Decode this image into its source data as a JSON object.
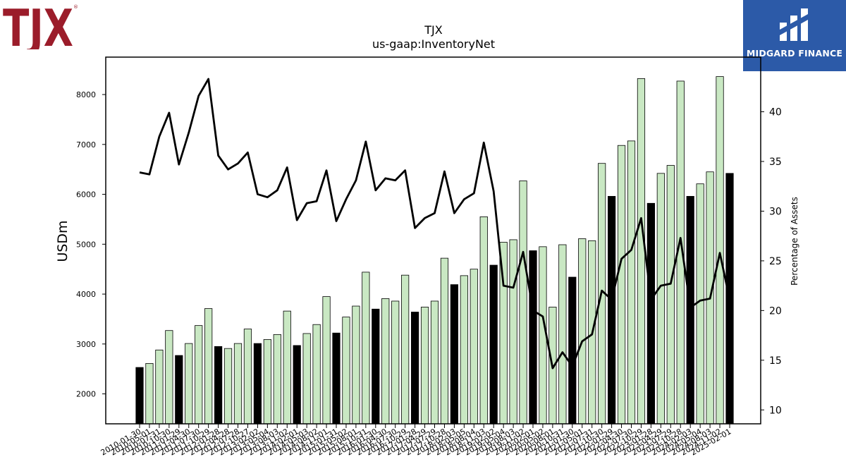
{
  "header": {
    "company_logo_text": "TJX",
    "brand_logo_text": "MIDGARD FINANCE",
    "colors": {
      "tjx_red": "#9b1c2a",
      "brand_blue": "#2c5aa8"
    }
  },
  "chart_data": {
    "type": "bar",
    "title": "TJX",
    "subtitle": "us-gaap:InventoryNet",
    "ylabel": "USDm",
    "y2label": "Percentage of Assets",
    "ylim": [
      1400,
      8750
    ],
    "y2lim": [
      8.6,
      45.5
    ],
    "yticks": [
      2000,
      3000,
      4000,
      5000,
      6000,
      7000,
      8000
    ],
    "y2ticks": [
      10,
      15,
      20,
      25,
      30,
      35,
      40
    ],
    "grid": false,
    "colors": {
      "annual_bar": "#000000",
      "quarter_bar": "#c9e8c3",
      "bar_edge": "#000000",
      "line": "#000000"
    },
    "categories": [
      "2010-01-30",
      "2010-05-01",
      "2010-07-31",
      "2010-10-30",
      "2011-01-29",
      "2011-04-30",
      "2011-07-30",
      "2011-10-29",
      "2012-01-28",
      "2012-04-28",
      "2012-07-28",
      "2012-10-27",
      "2013-02-02",
      "2013-05-04",
      "2013-08-03",
      "2013-11-02",
      "2014-02-01",
      "2014-05-03",
      "2014-08-02",
      "2014-11-01",
      "2015-01-31",
      "2015-05-02",
      "2015-08-01",
      "2015-10-31",
      "2016-01-30",
      "2016-04-30",
      "2016-07-30",
      "2016-10-29",
      "2017-01-28",
      "2017-04-29",
      "2017-07-29",
      "2017-10-28",
      "2018-02-03",
      "2018-05-05",
      "2018-08-04",
      "2018-11-03",
      "2019-02-02",
      "2019-05-04",
      "2019-08-03",
      "2019-11-02",
      "2020-02-01",
      "2020-05-02",
      "2020-08-01",
      "2020-10-31",
      "2021-01-30",
      "2021-05-01",
      "2021-07-31",
      "2021-10-30",
      "2022-01-29",
      "2022-04-30",
      "2022-07-30",
      "2022-10-29",
      "2023-01-28",
      "2023-04-29",
      "2023-07-29",
      "2023-10-28",
      "2024-02-03",
      "2024-05-04",
      "2024-08-03",
      "2024-11-02",
      "2025-02-01"
    ],
    "annual": [
      true,
      false,
      false,
      false,
      true,
      false,
      false,
      false,
      true,
      false,
      false,
      false,
      true,
      false,
      false,
      false,
      true,
      false,
      false,
      false,
      true,
      false,
      false,
      false,
      true,
      false,
      false,
      false,
      true,
      false,
      false,
      false,
      true,
      false,
      false,
      false,
      true,
      false,
      false,
      false,
      true,
      false,
      false,
      false,
      true,
      false,
      false,
      false,
      true,
      false,
      false,
      false,
      true,
      false,
      false,
      false,
      true,
      false,
      false,
      false,
      true
    ],
    "series": [
      {
        "name": "Inventory",
        "axis": "left",
        "kind": "bar",
        "values": [
          2530,
          2610,
          2880,
          3270,
          2770,
          3010,
          3370,
          3710,
          2950,
          2910,
          3010,
          3300,
          3010,
          3090,
          3190,
          3660,
          2970,
          3210,
          3390,
          3950,
          3220,
          3540,
          3760,
          4440,
          3700,
          3910,
          3860,
          4380,
          3640,
          3740,
          3860,
          4720,
          4190,
          4370,
          4500,
          5550,
          4580,
          5040,
          5090,
          6270,
          4870,
          4950,
          3740,
          4990,
          4340,
          5110,
          5070,
          6620,
          5960,
          6980,
          7070,
          8320,
          5820,
          6420,
          6580,
          8270,
          5960,
          6210,
          6450,
          8360,
          6420
        ]
      },
      {
        "name": "Percentage of Assets",
        "axis": "right",
        "kind": "line",
        "values": [
          33.9,
          33.7,
          37.5,
          39.9,
          34.7,
          37.9,
          41.6,
          43.3,
          35.6,
          34.2,
          34.8,
          35.9,
          31.7,
          31.4,
          32.1,
          34.4,
          29.1,
          30.8,
          31.0,
          34.1,
          29.0,
          31.2,
          33.1,
          37.0,
          32.1,
          33.3,
          33.1,
          34.1,
          28.3,
          29.3,
          29.8,
          34.0,
          29.8,
          31.2,
          31.8,
          36.9,
          32.0,
          22.5,
          22.3,
          25.9,
          20.0,
          19.4,
          14.2,
          15.8,
          14.4,
          16.9,
          17.6,
          22.0,
          21.1,
          25.2,
          26.1,
          29.3,
          21.1,
          22.5,
          22.7,
          27.3,
          20.3,
          21.0,
          21.2,
          25.8,
          21.1
        ]
      }
    ]
  }
}
